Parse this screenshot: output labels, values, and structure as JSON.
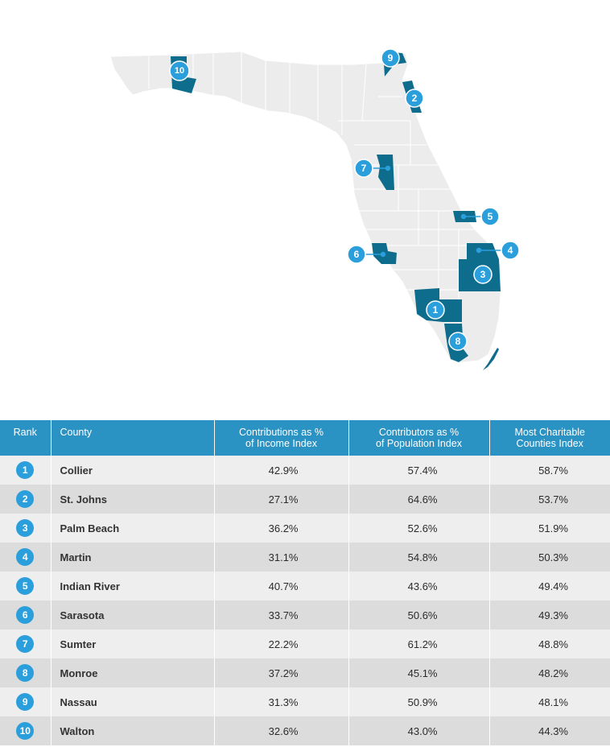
{
  "colors": {
    "state_fill": "#ececec",
    "county_highlight": "#0e6d8c",
    "badge": "#2b9fdc",
    "header_bg": "#2b92c4"
  },
  "map": {
    "markers": [
      {
        "rank": "1",
        "county": "Collier"
      },
      {
        "rank": "2",
        "county": "St. Johns"
      },
      {
        "rank": "3",
        "county": "Palm Beach"
      },
      {
        "rank": "4",
        "county": "Martin"
      },
      {
        "rank": "5",
        "county": "Indian River"
      },
      {
        "rank": "6",
        "county": "Sarasota"
      },
      {
        "rank": "7",
        "county": "Sumter"
      },
      {
        "rank": "8",
        "county": "Monroe"
      },
      {
        "rank": "9",
        "county": "Nassau"
      },
      {
        "rank": "10",
        "county": "Walton"
      }
    ]
  },
  "table": {
    "headers": {
      "rank": "Rank",
      "county": "County",
      "col1": "Contributions as %\nof Income Index",
      "col2": "Contributors as %\nof Population Index",
      "col3": "Most Charitable\nCounties Index"
    },
    "rows": [
      {
        "rank": "1",
        "county": "Collier",
        "col1": "42.9%",
        "col2": "57.4%",
        "col3": "58.7%"
      },
      {
        "rank": "2",
        "county": "St. Johns",
        "col1": "27.1%",
        "col2": "64.6%",
        "col3": "53.7%"
      },
      {
        "rank": "3",
        "county": "Palm Beach",
        "col1": "36.2%",
        "col2": "52.6%",
        "col3": "51.9%"
      },
      {
        "rank": "4",
        "county": "Martin",
        "col1": "31.1%",
        "col2": "54.8%",
        "col3": "50.3%"
      },
      {
        "rank": "5",
        "county": "Indian River",
        "col1": "40.7%",
        "col2": "43.6%",
        "col3": "49.4%"
      },
      {
        "rank": "6",
        "county": "Sarasota",
        "col1": "33.7%",
        "col2": "50.6%",
        "col3": "49.3%"
      },
      {
        "rank": "7",
        "county": "Sumter",
        "col1": "22.2%",
        "col2": "61.2%",
        "col3": "48.8%"
      },
      {
        "rank": "8",
        "county": "Monroe",
        "col1": "37.2%",
        "col2": "45.1%",
        "col3": "48.2%"
      },
      {
        "rank": "9",
        "county": "Nassau",
        "col1": "31.3%",
        "col2": "50.9%",
        "col3": "48.1%"
      },
      {
        "rank": "10",
        "county": "Walton",
        "col1": "32.6%",
        "col2": "43.0%",
        "col3": "44.3%"
      }
    ]
  }
}
